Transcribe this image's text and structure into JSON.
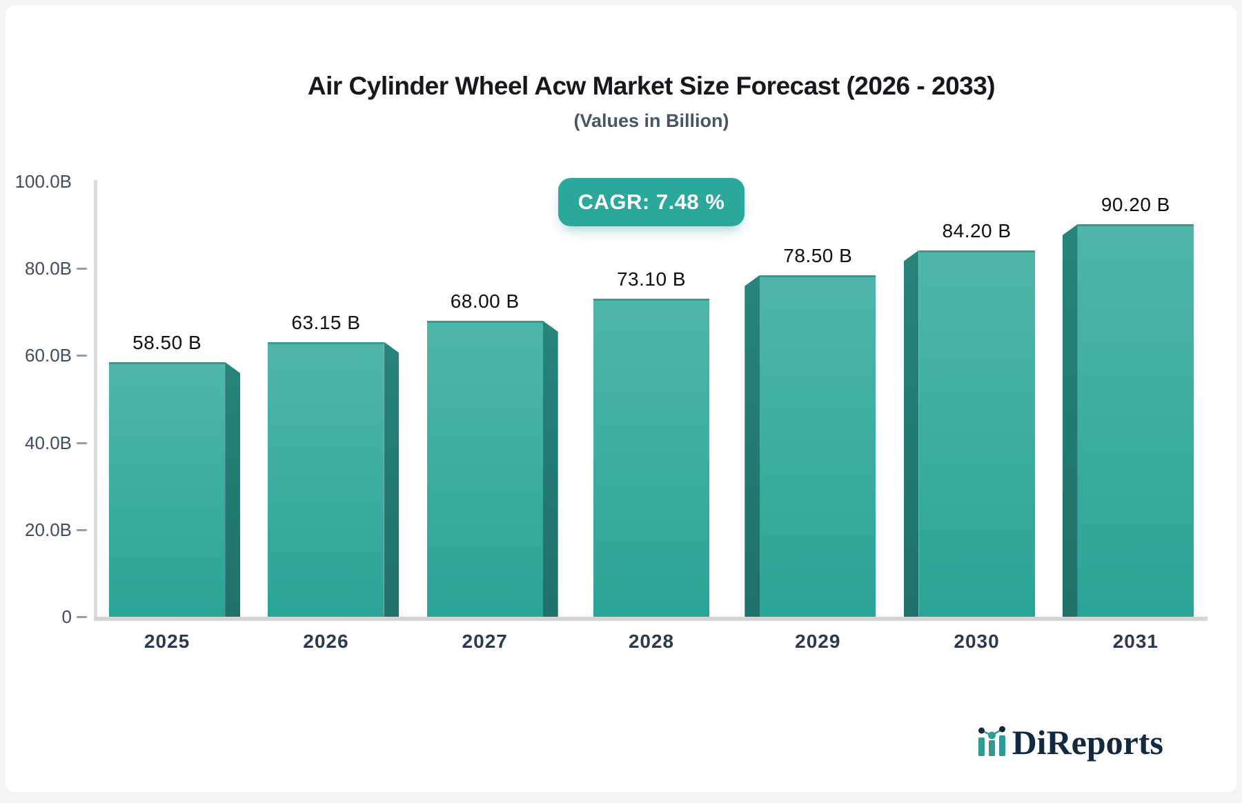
{
  "header": {
    "title": "Air Cylinder Wheel Acw Market Size Forecast (2026 - 2033)",
    "subtitle": "(Values in Billion)"
  },
  "chart_data": {
    "type": "bar",
    "title": "Air Cylinder Wheel Acw Market Size Forecast (2026 - 2033)",
    "subtitle": "(Values in Billion)",
    "annotation": "CAGR: 7.48 %",
    "categories": [
      "2025",
      "2026",
      "2027",
      "2028",
      "2029",
      "2030",
      "2031"
    ],
    "values": [
      58.5,
      63.15,
      68.0,
      73.1,
      78.5,
      84.2,
      90.2
    ],
    "value_labels": [
      "58.50 B",
      "63.15 B",
      "68.00 B",
      "73.10 B",
      "78.50 B",
      "84.20 B",
      "90.20 B"
    ],
    "xlabel": "",
    "ylabel": "",
    "ylim": [
      0,
      100
    ],
    "yticks": [
      {
        "label": "100.0B",
        "value": 100,
        "dash": false
      },
      {
        "label": "80.0B",
        "value": 80,
        "dash": true
      },
      {
        "label": "60.0B",
        "value": 60,
        "dash": true
      },
      {
        "label": "40.0B",
        "value": 40,
        "dash": true
      },
      {
        "label": "20.0B",
        "value": 20,
        "dash": true
      },
      {
        "label": "0",
        "value": 0,
        "dash": true
      }
    ],
    "grid": false,
    "legend": "none",
    "bar_style": "3d-extruded",
    "colors": {
      "bar_top": "#4fb6a9",
      "bar_bottom": "#2aa496",
      "bar_side_top": "#26857b",
      "bar_side_bottom": "#1f7169",
      "badge": "#2aa89c",
      "axis": "#d5d9de",
      "tick_text": "#3e4d63",
      "value_text": "#0c0e10",
      "title_text": "#15181d",
      "subtitle_text": "#475569"
    }
  },
  "branding": {
    "logo_text": "DiReports",
    "logo_icon": "mini-bar-chart-icon",
    "logo_navy": "#132940",
    "logo_teal": "#2d9d93"
  }
}
